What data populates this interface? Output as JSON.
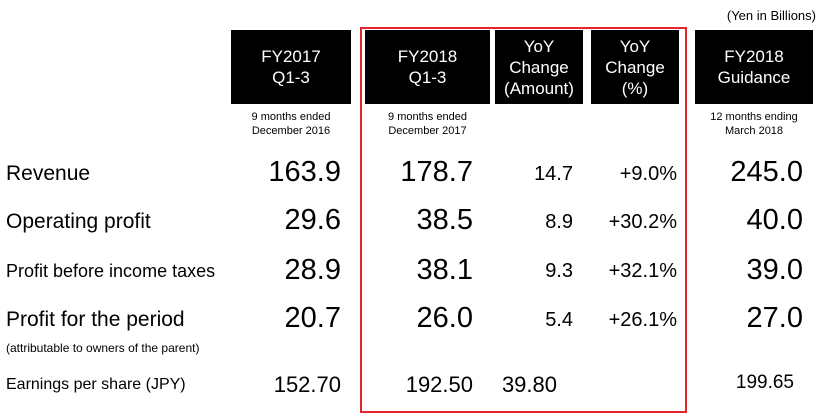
{
  "unit_note": "(Yen in Billions)",
  "columns": [
    {
      "header": "FY2017\nQ1-3",
      "sub": "9 months ended\nDecember 2016"
    },
    {
      "header": "FY2018\nQ1-3",
      "sub": "9 months ended\nDecember 2017"
    },
    {
      "header": "YoY\nChange\n(Amount)",
      "sub": ""
    },
    {
      "header": "YoY\nChange\n(%)",
      "sub": ""
    },
    {
      "header": "FY2018\nGuidance",
      "sub": "12 months ending\nMarch 2018"
    }
  ],
  "rows": [
    {
      "label": "Revenue",
      "fy2017": "163.9",
      "fy2018": "178.7",
      "yoy_amount": "14.7",
      "yoy_pct": "+9.0%",
      "guidance": "245.0"
    },
    {
      "label": "Operating profit",
      "fy2017": "29.6",
      "fy2018": "38.5",
      "yoy_amount": "8.9",
      "yoy_pct": "+30.2%",
      "guidance": "40.0"
    },
    {
      "label": "Profit before income taxes",
      "fy2017": "28.9",
      "fy2018": "38.1",
      "yoy_amount": "9.3",
      "yoy_pct": "+32.1%",
      "guidance": "39.0"
    },
    {
      "label": "Profit for the period",
      "sublabel": "(attributable to owners of the parent)",
      "fy2017": "20.7",
      "fy2018": "26.0",
      "yoy_amount": "5.4",
      "yoy_pct": "+26.1%",
      "guidance": "27.0"
    },
    {
      "label": "Earnings per share (JPY)",
      "fy2017": "152.70",
      "fy2018": "192.50",
      "yoy_amount": "39.80",
      "yoy_pct": "",
      "guidance": "199.65"
    }
  ],
  "colors": {
    "header_bg": "#000000",
    "header_text": "#ffffff",
    "highlight_border": "#e4262c"
  }
}
